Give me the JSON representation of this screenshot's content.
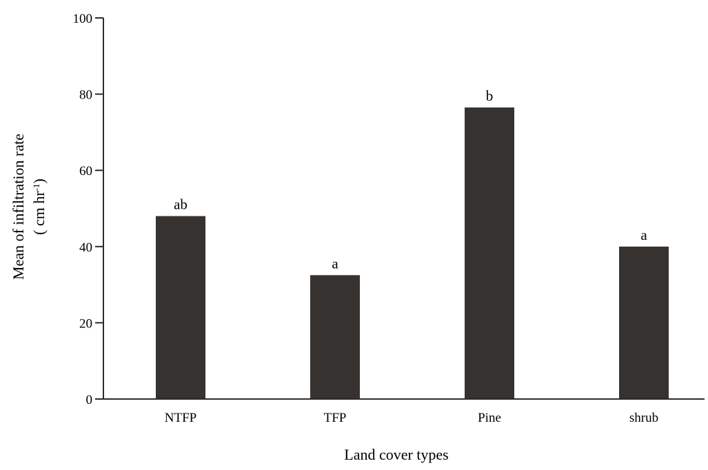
{
  "chart_data": {
    "type": "bar",
    "categories": [
      "NTFP",
      "TFP",
      "Pine",
      "shrub"
    ],
    "values": [
      48,
      32.5,
      76.5,
      40
    ],
    "data_labels": [
      "ab",
      "a",
      "b",
      "a"
    ],
    "title": "",
    "xlabel": "Land cover types",
    "ylabel_line1": "Mean of infiltration rate",
    "ylabel_line2_prefix": "( cm hr",
    "ylabel_line2_sup": "-1",
    "ylabel_line2_suffix": ")",
    "ylim": [
      0,
      100
    ],
    "yticks": [
      0,
      20,
      40,
      60,
      80,
      100
    ],
    "grid": false,
    "legend": "none",
    "bar_color": "#363230",
    "axis_color": "#2b2b2b"
  }
}
